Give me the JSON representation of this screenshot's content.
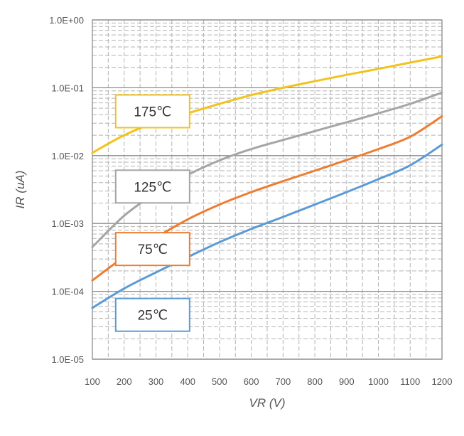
{
  "chart_data": {
    "type": "line",
    "xlabel": "VR (V)",
    "ylabel": "IR (uA)",
    "x_scale": "linear",
    "y_scale": "log",
    "xlim": [
      100,
      1200
    ],
    "ylim": [
      1e-05,
      1
    ],
    "x_ticks": [
      100,
      200,
      300,
      400,
      500,
      600,
      700,
      800,
      900,
      1000,
      1100,
      1200
    ],
    "x_tick_labels": [
      "100",
      "200",
      "300",
      "400",
      "500",
      "600",
      "700",
      "800",
      "900",
      "1000",
      "1100",
      "1200"
    ],
    "y_ticks": [
      1,
      0.1,
      0.01,
      0.001,
      0.0001,
      1e-05
    ],
    "y_tick_labels": [
      "1.0E+00",
      "1.0E-01",
      "1.0E-02",
      "1.0E-03",
      "1.0E-04",
      "1.0E-05"
    ],
    "grid": true,
    "x": [
      100,
      200,
      300,
      400,
      500,
      600,
      700,
      800,
      900,
      1000,
      1100,
      1200
    ],
    "series": [
      {
        "name": "175℃",
        "color": "#f2c31d",
        "values": [
          0.011,
          0.02,
          0.031,
          0.042,
          0.058,
          0.078,
          0.1,
          0.125,
          0.155,
          0.19,
          0.235,
          0.29
        ]
      },
      {
        "name": "125℃",
        "color": "#a5a5a5",
        "values": [
          0.00045,
          0.0013,
          0.0028,
          0.0052,
          0.0085,
          0.0125,
          0.017,
          0.023,
          0.031,
          0.042,
          0.058,
          0.085
        ]
      },
      {
        "name": "75℃",
        "color": "#ed7d31",
        "values": [
          0.000145,
          0.00032,
          0.00062,
          0.00115,
          0.0019,
          0.0029,
          0.0042,
          0.006,
          0.0086,
          0.0125,
          0.019,
          0.038
        ]
      },
      {
        "name": "25℃",
        "color": "#5b9bd5",
        "values": [
          5.7e-05,
          0.00011,
          0.00019,
          0.00032,
          0.00053,
          0.00083,
          0.00125,
          0.0019,
          0.0029,
          0.0045,
          0.0072,
          0.0145
        ]
      }
    ],
    "legend_boxes": [
      {
        "label": "175℃",
        "color": "#f2c31d",
        "x": 160,
        "y": 0.045
      },
      {
        "label": "125℃",
        "color": "#a5a5a5",
        "x": 160,
        "y": 0.0035
      },
      {
        "label": "75℃",
        "color": "#ed7d31",
        "x": 160,
        "y": 0.00042
      },
      {
        "label": "25℃",
        "color": "#5b9bd5",
        "x": 160,
        "y": 4.5e-05
      }
    ]
  }
}
